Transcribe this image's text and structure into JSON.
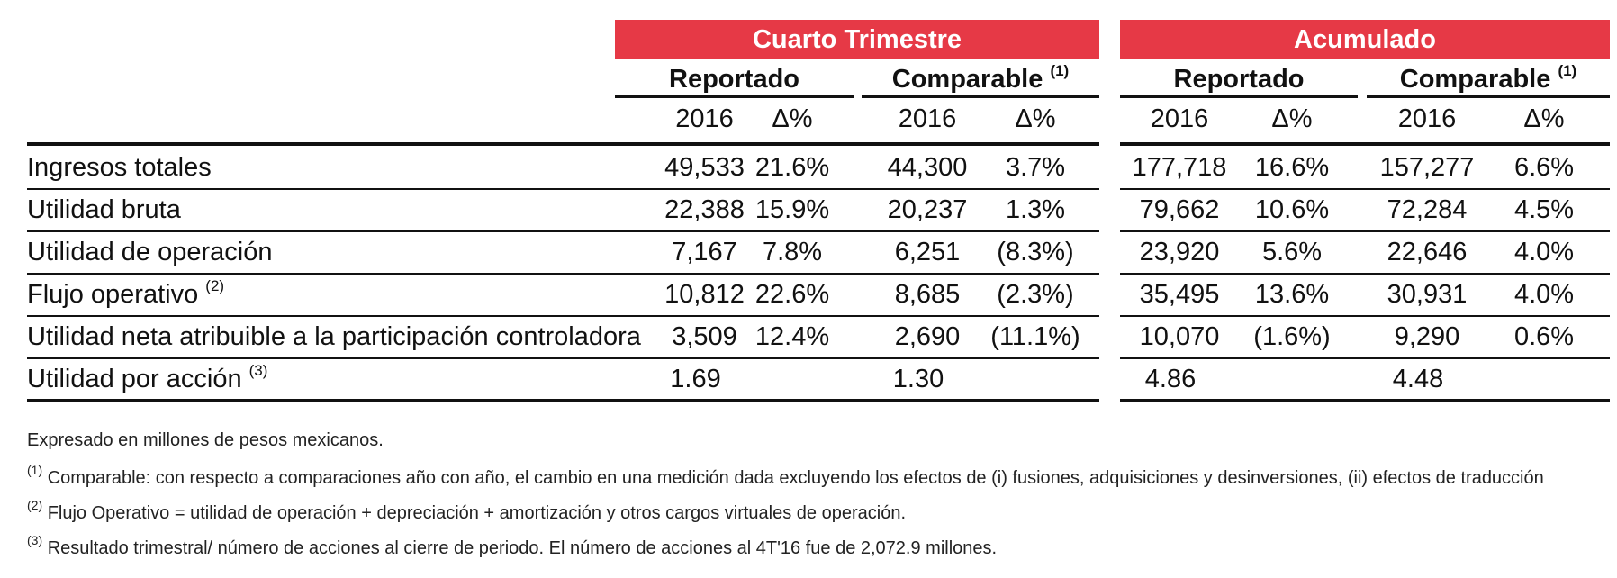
{
  "groups": [
    {
      "title": "Cuarto Trimestre"
    },
    {
      "title": "Acumulado"
    }
  ],
  "subheaders": [
    {
      "label": "Reportado",
      "sup": ""
    },
    {
      "label": "Comparable",
      "sup": "(1)"
    },
    {
      "label": "Reportado",
      "sup": ""
    },
    {
      "label": "Comparable",
      "sup": "(1)"
    }
  ],
  "col_headers": [
    "2016",
    "Δ%",
    "2016",
    "Δ%",
    "2016",
    "Δ%",
    "2016",
    "Δ%"
  ],
  "rows": [
    {
      "label": "Ingresos totales",
      "sup": "",
      "values": [
        "49,533",
        "21.6%",
        "44,300",
        "3.7%",
        "177,718",
        "16.6%",
        "157,277",
        "6.6%"
      ]
    },
    {
      "label": "Utilidad bruta",
      "sup": "",
      "values": [
        "22,388",
        "15.9%",
        "20,237",
        "1.3%",
        "79,662",
        "10.6%",
        "72,284",
        "4.5%"
      ]
    },
    {
      "label": "Utilidad de operación",
      "sup": "",
      "values": [
        "7,167",
        "7.8%",
        "6,251",
        "(8.3%)",
        "23,920",
        "5.6%",
        "22,646",
        "4.0%"
      ]
    },
    {
      "label": "Flujo operativo",
      "sup": "(2)",
      "values": [
        "10,812",
        "22.6%",
        "8,685",
        "(2.3%)",
        "35,495",
        "13.6%",
        "30,931",
        "4.0%"
      ]
    },
    {
      "label": "Utilidad neta atribuible a la participación controladora",
      "sup": "",
      "values": [
        "3,509",
        "12.4%",
        "2,690",
        "(11.1%)",
        "10,070",
        "(1.6%)",
        "9,290",
        "0.6%"
      ]
    },
    {
      "label": "Utilidad por acción",
      "sup": "(3)",
      "values": [
        "1.69",
        "",
        "1.30",
        "",
        "4.86",
        "",
        "4.48",
        ""
      ]
    }
  ],
  "notes": [
    {
      "sup": "",
      "text": "Expresado en millones de pesos mexicanos."
    },
    {
      "sup": "(1)",
      "text": "Comparable: con respecto a comparaciones año con año, el cambio en una medición dada excluyendo los efectos de (i) fusiones, adquisiciones y desinversiones, (ii) efectos de traducción"
    },
    {
      "sup": "(2)",
      "text": "Flujo Operativo = utilidad de operación + depreciación + amortización y otros cargos virtuales de operación."
    },
    {
      "sup": "(3)",
      "text": "Resultado trimestral/ número de acciones al cierre de periodo. El número de acciones al 4T'16 fue de 2,072.9 millones."
    }
  ],
  "colors": {
    "header_red": "#e63946",
    "rule": "#111111"
  }
}
